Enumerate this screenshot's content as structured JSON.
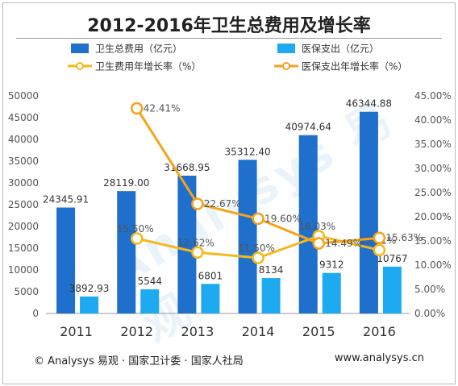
{
  "chart_data": {
    "type": "bar",
    "title": "2012-2016年卫生总费用及增长率",
    "categories": [
      "2011",
      "2012",
      "2013",
      "2014",
      "2015",
      "2016"
    ],
    "series": [
      {
        "name": "卫生总费用（亿元）",
        "type": "bar",
        "axis": "left",
        "color": "#1f6fcc",
        "values": [
          24345.91,
          28119.0,
          31668.95,
          35312.4,
          40974.64,
          46344.88
        ],
        "labels": [
          "24345.91",
          "28119.00",
          "31668.95",
          "35312.40",
          "40974.64",
          "46344.88"
        ]
      },
      {
        "name": "医保支出（亿元）",
        "type": "bar",
        "axis": "left",
        "color": "#1eaaf1",
        "values": [
          3892.93,
          5544,
          6801,
          8134,
          9312,
          10767
        ],
        "labels": [
          "3892.93",
          "5544",
          "6801",
          "8134",
          "9312",
          "10767"
        ]
      },
      {
        "name": "卫生费用年增长率（%）",
        "type": "line",
        "axis": "right",
        "color": "#f5b81c",
        "x": [
          "2012",
          "2013",
          "2014",
          "2015",
          "2016"
        ],
        "values": [
          15.5,
          12.62,
          11.5,
          16.03,
          13.11
        ],
        "labels": [
          "15.50%",
          "12.62%",
          "11.50%",
          "16.03%",
          "13.11%"
        ]
      },
      {
        "name": "医保支出年增长率（%）",
        "type": "line",
        "axis": "right",
        "color": "#f6a21a",
        "x": [
          "2012",
          "2013",
          "2014",
          "2015",
          "2016"
        ],
        "values": [
          42.41,
          22.67,
          19.6,
          14.49,
          15.63
        ],
        "labels": [
          "42.41%",
          "22.67%",
          "19.60%",
          "14.49%",
          "15.63%"
        ]
      }
    ],
    "ylim_left": [
      0,
      50000
    ],
    "yticks_left": [
      "0",
      "5000",
      "10000",
      "15000",
      "20000",
      "25000",
      "30000",
      "35000",
      "40000",
      "45000",
      "50000"
    ],
    "ylim_right": [
      0,
      45
    ],
    "yticks_right": [
      "0.00%",
      "5.00%",
      "10.00%",
      "15.00%",
      "20.00%",
      "25.00%",
      "30.00%",
      "35.00%",
      "40.00%",
      "45.00%"
    ],
    "legend_position": "top"
  },
  "footer": {
    "source": "© Analysys 易观 · 国家卫计委 · 国家人社局",
    "website": "www.analysys.cn"
  },
  "watermark": "Analysys 易观"
}
